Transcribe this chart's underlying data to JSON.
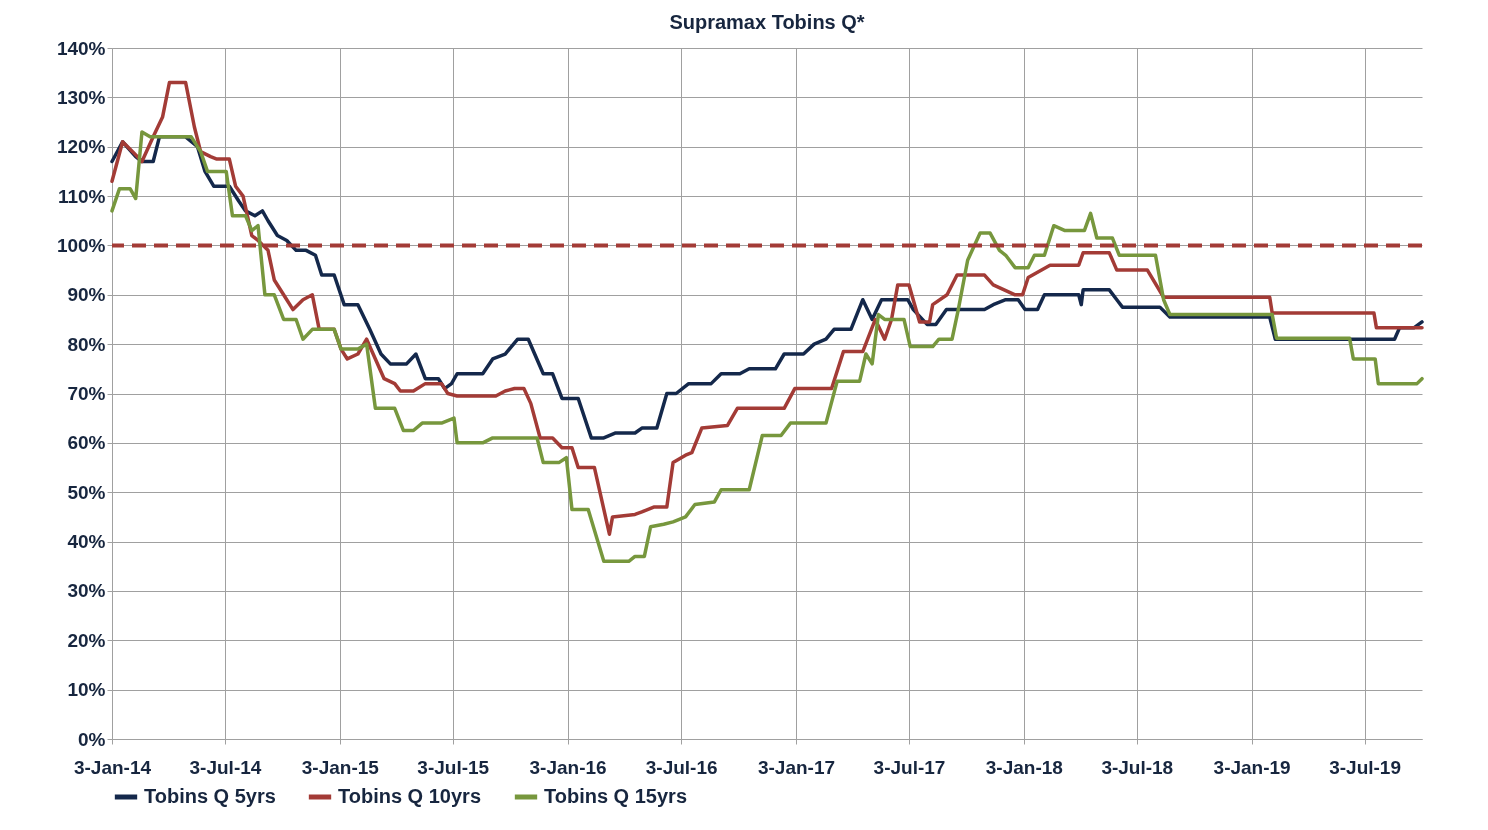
{
  "chart_data": {
    "type": "line",
    "title": "Supramax Tobins Q*",
    "xlim": [
      "2014-01-03",
      "2019-10-03"
    ],
    "xticks": [
      {
        "value": "2014-01-03",
        "label": "3-Jan-14"
      },
      {
        "value": "2014-07-03",
        "label": "3-Jul-14"
      },
      {
        "value": "2015-01-03",
        "label": "3-Jan-15"
      },
      {
        "value": "2015-07-03",
        "label": "3-Jul-15"
      },
      {
        "value": "2016-01-03",
        "label": "3-Jan-16"
      },
      {
        "value": "2016-07-03",
        "label": "3-Jul-16"
      },
      {
        "value": "2017-01-03",
        "label": "3-Jan-17"
      },
      {
        "value": "2017-07-03",
        "label": "3-Jul-17"
      },
      {
        "value": "2018-01-03",
        "label": "3-Jan-18"
      },
      {
        "value": "2018-07-03",
        "label": "3-Jul-18"
      },
      {
        "value": "2019-01-03",
        "label": "3-Jan-19"
      },
      {
        "value": "2019-07-03",
        "label": "3-Jul-19"
      }
    ],
    "ylim": [
      0,
      140
    ],
    "yticks": [
      {
        "value": 0,
        "label": "0%"
      },
      {
        "value": 10,
        "label": "10%"
      },
      {
        "value": 20,
        "label": "20%"
      },
      {
        "value": 30,
        "label": "30%"
      },
      {
        "value": 40,
        "label": "40%"
      },
      {
        "value": 50,
        "label": "50%"
      },
      {
        "value": 60,
        "label": "60%"
      },
      {
        "value": 70,
        "label": "70%"
      },
      {
        "value": 80,
        "label": "80%"
      },
      {
        "value": 90,
        "label": "90%"
      },
      {
        "value": 100,
        "label": "100%"
      },
      {
        "value": 110,
        "label": "110%"
      },
      {
        "value": 120,
        "label": "120%"
      },
      {
        "value": 130,
        "label": "130%"
      },
      {
        "value": 140,
        "label": "140%"
      }
    ],
    "grid": true,
    "legend": "bottom",
    "marker": "none",
    "line_style": "solid",
    "ref_lines": [
      {
        "axis": "y",
        "value": 100,
        "label": null,
        "color": "#a33b36",
        "line_style": "dashed"
      }
    ],
    "series": [
      {
        "name": "Tobins Q 5yrs",
        "color": "#14284b",
        "x": [
          "2014-01-03",
          "2014-01-20",
          "2014-02-10",
          "2014-02-20",
          "2014-03-10",
          "2014-03-20",
          "2014-05-01",
          "2014-05-20",
          "2014-06-01",
          "2014-06-15",
          "2014-07-10",
          "2014-07-25",
          "2014-08-05",
          "2014-08-20",
          "2014-09-01",
          "2014-09-10",
          "2014-09-25",
          "2014-10-10",
          "2014-10-25",
          "2014-11-10",
          "2014-11-25",
          "2014-12-05",
          "2014-12-25",
          "2015-01-10",
          "2015-02-01",
          "2015-02-20",
          "2015-03-10",
          "2015-03-25",
          "2015-04-20",
          "2015-05-05",
          "2015-05-20",
          "2015-06-10",
          "2015-06-20",
          "2015-07-01",
          "2015-07-10",
          "2015-08-20",
          "2015-09-05",
          "2015-09-25",
          "2015-10-15",
          "2015-11-01",
          "2015-11-25",
          "2015-12-10",
          "2015-12-25",
          "2016-01-20",
          "2016-02-10",
          "2016-03-01",
          "2016-03-20",
          "2016-04-20",
          "2016-05-01",
          "2016-05-25",
          "2016-06-10",
          "2016-06-25",
          "2016-07-15",
          "2016-08-20",
          "2016-09-05",
          "2016-10-05",
          "2016-10-20",
          "2016-12-01",
          "2016-12-15",
          "2017-01-15",
          "2017-02-01",
          "2017-02-20",
          "2017-03-05",
          "2017-04-01",
          "2017-04-20",
          "2017-05-05",
          "2017-05-20",
          "2017-07-01",
          "2017-07-10",
          "2017-08-01",
          "2017-08-15",
          "2017-09-01",
          "2017-11-01",
          "2017-11-15",
          "2017-12-05",
          "2017-12-25",
          "2018-01-05",
          "2018-01-25",
          "2018-02-05",
          "2018-04-01",
          "2018-04-05",
          "2018-04-08",
          "2018-05-20",
          "2018-06-01",
          "2018-06-10",
          "2018-08-09",
          "2018-08-25",
          "2019-02-01",
          "2019-02-10",
          "2019-08-20",
          "2019-08-28",
          "2019-09-20",
          "2019-10-03"
        ],
        "values": [
          117,
          121,
          118,
          117,
          117,
          122,
          122,
          120,
          115,
          112,
          112,
          109,
          107,
          106,
          107,
          105,
          102,
          101,
          99,
          99,
          98,
          94,
          94,
          88,
          88,
          83,
          78,
          76,
          76,
          78,
          73,
          73,
          71,
          72,
          74,
          74,
          77,
          78,
          81,
          81,
          74,
          74,
          69,
          69,
          61,
          61,
          62,
          62,
          63,
          63,
          70,
          70,
          72,
          72,
          74,
          74,
          75,
          75,
          78,
          78,
          80,
          81,
          83,
          83,
          89,
          85,
          89,
          89,
          87,
          84,
          84,
          87,
          87,
          88,
          89,
          89,
          87,
          87,
          90,
          90,
          88,
          91,
          91,
          89,
          87.5,
          87.5,
          85.5,
          85.5,
          81,
          81,
          83.3,
          83.3,
          84.5
        ]
      },
      {
        "name": "Tobins Q 10yrs",
        "color": "#a33b36",
        "x": [
          "2014-01-03",
          "2014-01-20",
          "2014-02-05",
          "2014-02-20",
          "2014-03-10",
          "2014-03-25",
          "2014-04-05",
          "2014-05-01",
          "2014-05-15",
          "2014-05-25",
          "2014-06-10",
          "2014-06-20",
          "2014-07-10",
          "2014-07-20",
          "2014-08-01",
          "2014-08-15",
          "2014-08-25",
          "2014-09-10",
          "2014-09-20",
          "2014-10-05",
          "2014-10-20",
          "2014-11-05",
          "2014-11-20",
          "2014-12-01",
          "2014-12-25",
          "2015-01-05",
          "2015-01-15",
          "2015-02-01",
          "2015-02-15",
          "2015-03-01",
          "2015-03-15",
          "2015-04-01",
          "2015-04-10",
          "2015-05-01",
          "2015-05-20",
          "2015-06-15",
          "2015-06-25",
          "2015-07-10",
          "2015-09-10",
          "2015-09-25",
          "2015-10-10",
          "2015-10-25",
          "2015-11-05",
          "2015-11-20",
          "2015-12-10",
          "2015-12-25",
          "2016-01-10",
          "2016-01-20",
          "2016-02-15",
          "2016-03-10",
          "2016-03-15",
          "2016-04-20",
          "2016-05-01",
          "2016-05-20",
          "2016-06-10",
          "2016-06-20",
          "2016-07-10",
          "2016-07-20",
          "2016-08-05",
          "2016-09-15",
          "2016-10-01",
          "2016-12-15",
          "2017-01-01",
          "2017-03-01",
          "2017-03-20",
          "2017-04-20",
          "2017-05-10",
          "2017-05-25",
          "2017-06-05",
          "2017-06-15",
          "2017-07-03",
          "2017-07-20",
          "2017-08-05",
          "2017-08-10",
          "2017-09-02",
          "2017-09-18",
          "2017-11-01",
          "2017-11-15",
          "2017-12-20",
          "2018-01-01",
          "2018-01-10",
          "2018-02-14",
          "2018-04-01",
          "2018-04-08",
          "2018-05-20",
          "2018-06-01",
          "2018-07-20",
          "2018-08-15",
          "2018-08-25",
          "2019-02-01",
          "2019-02-05",
          "2019-07-18",
          "2019-07-22",
          "2019-10-03"
        ],
        "values": [
          113,
          121,
          119,
          117,
          122,
          126,
          133,
          133,
          124,
          119,
          118,
          117.5,
          117.5,
          112,
          110,
          102,
          101,
          99,
          93,
          90,
          87,
          89,
          90,
          83,
          83,
          79,
          77,
          78,
          81,
          77,
          73,
          72,
          70.5,
          70.5,
          72,
          72,
          70,
          69.5,
          69.5,
          70.5,
          71,
          71,
          68,
          61,
          61,
          59,
          59,
          55,
          55,
          41.5,
          45,
          45.5,
          46,
          47,
          47,
          56,
          57.5,
          58,
          63,
          63.5,
          67,
          67,
          71,
          71,
          78.5,
          78.5,
          85,
          81,
          85,
          92,
          92,
          84.5,
          84.5,
          88,
          90,
          94,
          94,
          92,
          90,
          90,
          93.5,
          96,
          96,
          98.5,
          98.5,
          95,
          95,
          89.5,
          89.5,
          89.5,
          86.3,
          86.3,
          83.3,
          83.3
        ]
      },
      {
        "name": "Tobins Q 15yrs",
        "color": "#77973d",
        "x": [
          "2014-01-03",
          "2014-01-15",
          "2014-02-01",
          "2014-02-10",
          "2014-02-20",
          "2014-03-05",
          "2014-05-10",
          "2014-05-25",
          "2014-06-05",
          "2014-07-05",
          "2014-07-15",
          "2014-08-05",
          "2014-08-15",
          "2014-08-25",
          "2014-09-05",
          "2014-09-20",
          "2014-10-05",
          "2014-10-25",
          "2014-11-05",
          "2014-11-20",
          "2014-12-25",
          "2015-01-05",
          "2015-02-01",
          "2015-02-15",
          "2015-03-01",
          "2015-04-01",
          "2015-04-15",
          "2015-05-01",
          "2015-05-15",
          "2015-06-15",
          "2015-07-05",
          "2015-07-10",
          "2015-08-20",
          "2015-09-05",
          "2015-11-15",
          "2015-11-25",
          "2015-12-20",
          "2016-01-01",
          "2016-01-10",
          "2016-02-05",
          "2016-03-01",
          "2016-04-10",
          "2016-04-20",
          "2016-05-05",
          "2016-05-15",
          "2016-06-05",
          "2016-06-20",
          "2016-07-10",
          "2016-07-25",
          "2016-08-25",
          "2016-09-05",
          "2016-10-20",
          "2016-11-10",
          "2016-12-10",
          "2016-12-25",
          "2017-02-20",
          "2017-03-10",
          "2017-04-15",
          "2017-04-25",
          "2017-05-05",
          "2017-05-15",
          "2017-05-25",
          "2017-06-25",
          "2017-07-05",
          "2017-08-10",
          "2017-08-20",
          "2017-09-10",
          "2017-09-20",
          "2017-10-05",
          "2017-10-25",
          "2017-11-10",
          "2017-11-25",
          "2017-12-05",
          "2017-12-20",
          "2018-01-10",
          "2018-01-20",
          "2018-02-05",
          "2018-02-20",
          "2018-03-10",
          "2018-04-10",
          "2018-04-20",
          "2018-04-30",
          "2018-05-25",
          "2018-06-05",
          "2018-08-02",
          "2018-08-15",
          "2018-08-25",
          "2019-02-05",
          "2019-02-12",
          "2019-06-09",
          "2019-06-15",
          "2019-07-20",
          "2019-07-25",
          "2019-09-25",
          "2019-10-03"
        ],
        "values": [
          107,
          111.5,
          111.5,
          109.5,
          123,
          122,
          122,
          119,
          115,
          115,
          106,
          106,
          103,
          104,
          90,
          90,
          85,
          85,
          81,
          83,
          83,
          79,
          79,
          80,
          67,
          67,
          62.5,
          62.5,
          64,
          64,
          65,
          60,
          60,
          61,
          61,
          56,
          56,
          57,
          46.5,
          46.5,
          36,
          36,
          37,
          37,
          43,
          43.5,
          44,
          45,
          47.5,
          48,
          50.5,
          50.5,
          61.5,
          61.5,
          64,
          64,
          72.5,
          72.5,
          78,
          76,
          86,
          85,
          85,
          79.5,
          79.5,
          81,
          81,
          87,
          97,
          102.5,
          102.5,
          99,
          98,
          95.5,
          95.5,
          98,
          98,
          104,
          103,
          103,
          106.5,
          101.5,
          101.5,
          98,
          98,
          89,
          86,
          86,
          81.2,
          81.2,
          77,
          77,
          72,
          72,
          73
        ]
      }
    ]
  }
}
